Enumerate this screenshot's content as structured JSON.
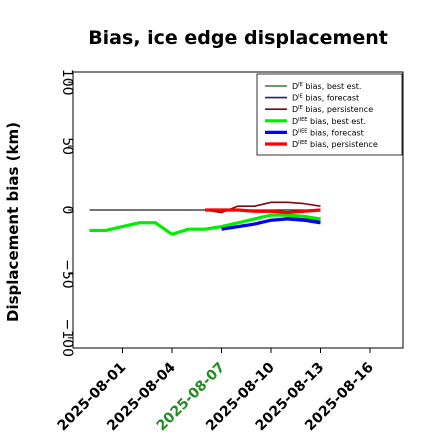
{
  "chart_data": {
    "type": "line",
    "title": "Bias, ice edge displacement",
    "xlabel": "",
    "ylabel": "Displacement bias (km)",
    "ylim": [
      -108,
      108
    ],
    "xlim": [
      "2025-07-29",
      "2025-08-18"
    ],
    "yticks": [
      100,
      50,
      0,
      -50,
      -100
    ],
    "ytick_labels": [
      "100",
      "50",
      "0",
      "−50",
      "−100"
    ],
    "xticks": [
      "2025-08-01",
      "2025-08-04",
      "2025-08-07",
      "2025-08-10",
      "2025-08-13",
      "2025-08-16"
    ],
    "xtick_labels": [
      "2025-08-01",
      "2025-08-04",
      "2025-08-07",
      "2025-08-10",
      "2025-08-13",
      "2025-08-16"
    ],
    "highlight_xtick": "2025-08-07",
    "highlight_color": "#228b22",
    "grid": false,
    "legend_position": "top-right",
    "zero_line": {
      "color": "#222222",
      "x_start": "2025-07-30",
      "x_end": "2025-08-13"
    },
    "series": [
      {
        "key": "ie_best",
        "legend_main": "D",
        "legend_sup": "IE",
        "legend_rest": " bias, best est.",
        "color": "#2e7d32",
        "width": 1.6,
        "x": [],
        "values": []
      },
      {
        "key": "ie_forecast",
        "legend_main": "D",
        "legend_sup": "IE",
        "legend_rest": " bias, forecast",
        "color": "#1a237e",
        "width": 1.6,
        "x": [
          "2025-08-07",
          "2025-08-08",
          "2025-08-09",
          "2025-08-10",
          "2025-08-11",
          "2025-08-12",
          "2025-08-13"
        ],
        "values": [
          -14,
          -13,
          -11,
          -8,
          -6,
          -7,
          -8
        ]
      },
      {
        "key": "ie_persistence",
        "legend_main": "D",
        "legend_sup": "IE",
        "legend_rest": " bias, persistence",
        "color": "#7b0a0a",
        "width": 1.6,
        "x": [
          "2025-08-06",
          "2025-08-07",
          "2025-08-08",
          "2025-08-09",
          "2025-08-10",
          "2025-08-11",
          "2025-08-12",
          "2025-08-13"
        ],
        "values": [
          0,
          -2,
          3,
          3,
          6,
          6,
          5,
          3
        ]
      },
      {
        "key": "iiee_best",
        "legend_main": "D",
        "legend_sup": "IIEE",
        "legend_rest": " bias, best est.",
        "color": "#00ee00",
        "width": 3.2,
        "x": [
          "2025-07-30",
          "2025-07-31",
          "2025-08-01",
          "2025-08-02",
          "2025-08-03",
          "2025-08-04",
          "2025-08-05",
          "2025-08-06",
          "2025-08-07",
          "2025-08-08",
          "2025-08-09",
          "2025-08-10",
          "2025-08-11",
          "2025-08-12",
          "2025-08-13"
        ],
        "values": [
          -16,
          -16,
          -13,
          -10,
          -10,
          -19,
          -15,
          -15,
          -13,
          -10,
          -7,
          -4,
          -4,
          -5,
          -7
        ]
      },
      {
        "key": "iiee_forecast",
        "legend_main": "D",
        "legend_sup": "IIEE",
        "legend_rest": " bias, forecast",
        "color": "#0000ff",
        "width": 3.2,
        "x": [
          "2025-08-07",
          "2025-08-08",
          "2025-08-09",
          "2025-08-10",
          "2025-08-11",
          "2025-08-12",
          "2025-08-13"
        ],
        "values": [
          -15,
          -13,
          -11,
          -8,
          -7,
          -8,
          -10
        ]
      },
      {
        "key": "iiee_persistence",
        "legend_main": "D",
        "legend_sup": "IIEE",
        "legend_rest": " bias, persistence",
        "color": "#ff0000",
        "width": 3.2,
        "x": [
          "2025-08-06",
          "2025-08-07",
          "2025-08-08",
          "2025-08-09",
          "2025-08-10",
          "2025-08-11",
          "2025-08-12",
          "2025-08-13"
        ],
        "values": [
          0,
          0,
          0,
          -1,
          -1,
          -2,
          -1,
          0
        ]
      }
    ]
  }
}
